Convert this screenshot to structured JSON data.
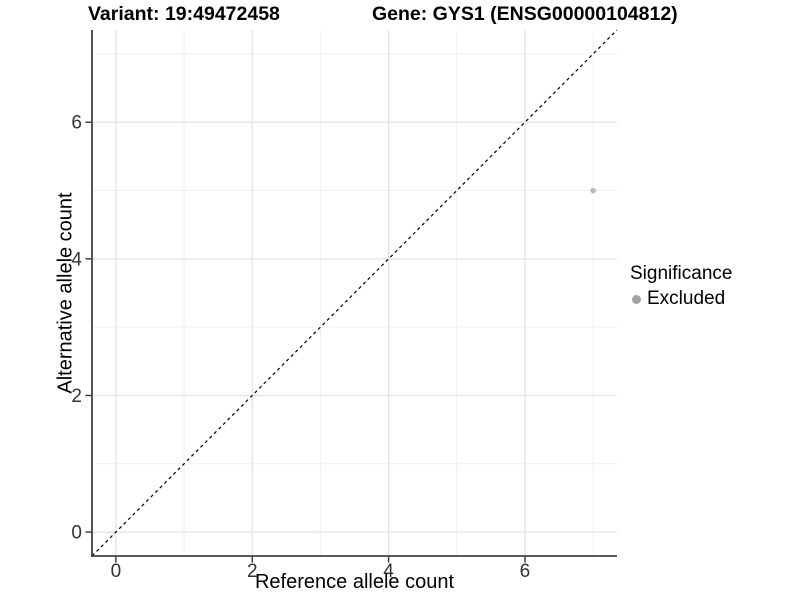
{
  "chart_data": {
    "type": "scatter",
    "title_variant": "Variant: 19:49472458",
    "title_gene": "Gene: GYS1 (ENSG00000104812)",
    "xlabel": "Reference allele count",
    "ylabel": "Alternative allele count",
    "xlim": [
      -0.35,
      7.35
    ],
    "ylim": [
      -0.35,
      7.35
    ],
    "xticks": [
      0,
      2,
      4,
      6
    ],
    "yticks": [
      0,
      2,
      4,
      6
    ],
    "grid_major": [
      0,
      2,
      4,
      6
    ],
    "grid_minor": [
      1,
      3,
      5,
      7
    ],
    "grid_on": true,
    "points": [
      {
        "x": 7,
        "y": 5,
        "significance": "Excluded",
        "color": "#b9b9b9"
      }
    ],
    "identity_line": {
      "from_xy": [
        -0.35,
        -0.35
      ],
      "to_xy": [
        7.35,
        7.35
      ],
      "style": "dashed",
      "color": "#000000"
    },
    "legend": {
      "title": "Significance",
      "position": "right",
      "items": [
        {
          "label": "Excluded",
          "color": "#a2a2a2"
        }
      ]
    },
    "colors": {
      "axis_line": "#404040",
      "tick_mark": "#333333",
      "grid_major": "#e3e3e3",
      "grid_minor": "#f0f0f0",
      "background": "#ffffff"
    }
  }
}
